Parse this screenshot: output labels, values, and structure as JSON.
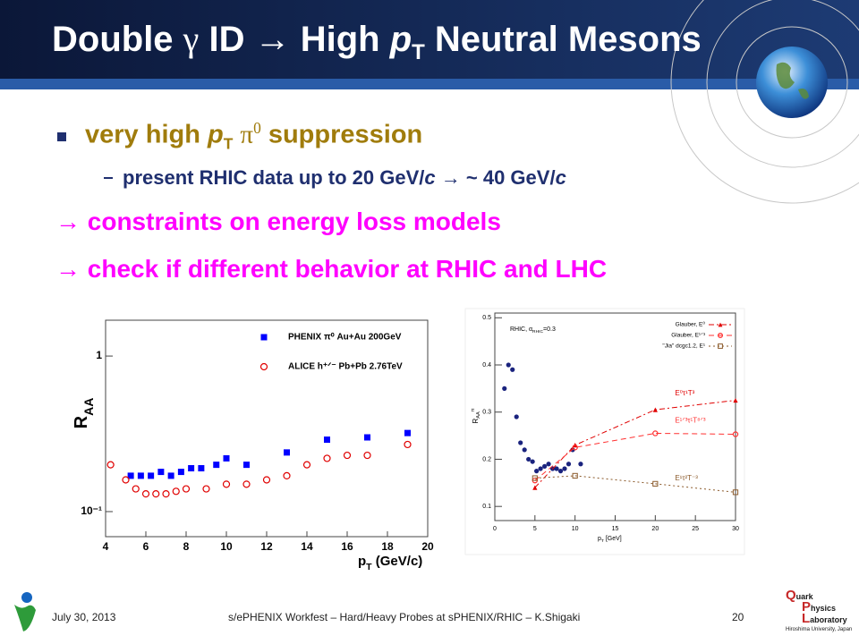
{
  "title": [
    "Double ",
    "γ",
    " ID → High ",
    "p",
    "T",
    " Neutral Mesons"
  ],
  "bullet": [
    "very high ",
    "p",
    "T",
    " ",
    "π",
    "0",
    " suppression"
  ],
  "sub_bullet": [
    "present RHIC data up to 20 GeV/",
    "c",
    " → ~ 40 GeV/",
    "c"
  ],
  "conclusions": [
    "→ constraints on energy loss models",
    "→ check if different behavior at RHIC and LHC"
  ],
  "footer": {
    "date": "July 30, 2013",
    "center": "s/ePHENIX Workfest – Hard/Heavy Probes at sPHENIX/RHIC – K.Shigaki",
    "page": 20
  },
  "logo": [
    "Q",
    "uark",
    "P",
    "hysics",
    "L",
    "aboratory",
    "Hiroshima University, Japan"
  ],
  "plots": [
    {
      "type": "scatter",
      "y_label": [
        "R",
        "AA"
      ],
      "x_label": [
        "p",
        "T",
        " (GeV/c)"
      ],
      "log_y": true,
      "xlim": [
        4,
        20
      ],
      "ylim": [
        0.069,
        1.7
      ],
      "xticks": [
        4,
        6,
        8,
        10,
        12,
        14,
        16,
        18,
        20
      ],
      "yticks": [
        {
          "value": 0.1,
          "label": "10⁻¹"
        },
        1
      ],
      "series": [
        {
          "name": "PHENIX π⁰  Au+Au 200GeV",
          "color": "#0000ff",
          "marker": "square",
          "x": [
            5.25,
            5.75,
            6.25,
            6.75,
            7.25,
            7.75,
            8.25,
            8.75,
            9.5,
            10,
            11,
            13,
            15,
            17,
            19
          ],
          "values": [
            0.17,
            0.17,
            0.17,
            0.18,
            0.17,
            0.18,
            0.19,
            0.19,
            0.2,
            0.22,
            0.2,
            0.24,
            0.29,
            0.3,
            0.32
          ]
        },
        {
          "name": "ALICE h⁺ᐟ⁻  Pb+Pb 2.76TeV",
          "color": "#e00000",
          "marker": "open-circle",
          "x": [
            4.25,
            5,
            5.5,
            6,
            6.5,
            7,
            7.5,
            8,
            9,
            10,
            11,
            12,
            13,
            14,
            15,
            16,
            17,
            19
          ],
          "values": [
            0.2,
            0.16,
            0.14,
            0.13,
            0.13,
            0.13,
            0.135,
            0.14,
            0.14,
            0.15,
            0.15,
            0.16,
            0.17,
            0.2,
            0.22,
            0.23,
            0.23,
            0.27
          ]
        }
      ]
    },
    {
      "type": "line",
      "y_label": [
        "R",
        "AA",
        "π"
      ],
      "x_label": [
        "p",
        "T",
        " [GeV]"
      ],
      "annotation": [
        "RHIC, α",
        "RHIC",
        "=0.3"
      ],
      "xlim": [
        0,
        30
      ],
      "ylim": [
        0.07,
        0.51
      ],
      "xticks": [
        0,
        5,
        10,
        15,
        20,
        25,
        30
      ],
      "yticks": [
        0.1,
        0.2,
        0.3,
        0.4,
        0.5
      ],
      "series": [
        {
          "color": "#1a237e",
          "marker": "circle",
          "x": [
            1.2,
            1.7,
            2.2,
            2.7,
            3.2,
            3.7,
            4.2,
            4.7,
            5.2,
            5.7,
            6.2,
            6.7,
            7.2,
            7.7,
            8.2,
            8.7,
            9.2,
            9.7,
            10.7
          ],
          "values": [
            0.35,
            0.4,
            0.39,
            0.29,
            0.235,
            0.22,
            0.2,
            0.195,
            0.175,
            0.18,
            0.185,
            0.19,
            0.18,
            0.18,
            0.175,
            0.18,
            0.19,
            0.22,
            0.19
          ]
        },
        {
          "name": "Glauber, E⁰",
          "label": "E⁰τ¹T³",
          "color": "#e00000",
          "marker": "triangle",
          "dash": "6 3 2 3",
          "x": [
            5,
            10,
            20,
            30
          ],
          "values": [
            0.14,
            0.23,
            0.305,
            0.325
          ]
        },
        {
          "name": "Glauber, E¹ᐟ³",
          "label": "E¹ᐟ³τ¹T⁸ᐟ³",
          "color": "#ff3030",
          "marker": "open-circle",
          "dash": "6 4",
          "x": [
            5,
            10,
            20,
            30
          ],
          "values": [
            0.155,
            0.225,
            0.255,
            0.253
          ]
        },
        {
          "name": "\"Jia\" dcgc1.2, E¹",
          "label": "E¹τ²T⁻³",
          "color": "#8b5a2b",
          "marker": "open-square",
          "dash": "2 3",
          "x": [
            5,
            10,
            20,
            30
          ],
          "values": [
            0.16,
            0.165,
            0.148,
            0.13
          ]
        }
      ]
    }
  ]
}
